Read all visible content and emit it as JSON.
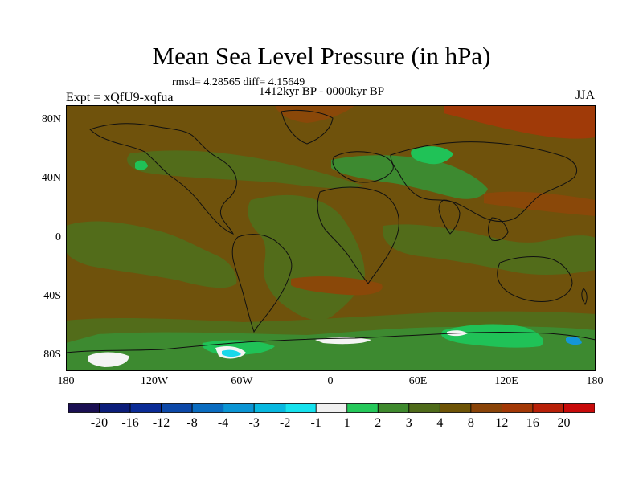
{
  "title": "Mean Sea Level Pressure (in hPa)",
  "stats_line": "rmsd= 4.28565 diff= 4.15649",
  "period_label": "1412kyr BP - 0000kyr BP",
  "experiment_label": "Expt = xQfU9-xqfua",
  "season_label": "JJA",
  "latitude_labels": [
    "80N",
    "40N",
    "0",
    "40S",
    "80S"
  ],
  "longitude_labels": [
    "180",
    "120W",
    "60W",
    "0",
    "60E",
    "120E",
    "180"
  ],
  "colorbar": {
    "labels": [
      "-20",
      "-16",
      "-12",
      "-8",
      "-4",
      "-3",
      "-2",
      "-1",
      "1",
      "2",
      "3",
      "4",
      "8",
      "12",
      "16",
      "20"
    ],
    "colors": [
      "#1a0f52",
      "#0b1d7a",
      "#0a2b96",
      "#0c48a8",
      "#0a6cc0",
      "#0b95d4",
      "#08b8e0",
      "#16e2ee",
      "#f0f0f0",
      "#25c85a",
      "#3f8a2e",
      "#4f6b1a",
      "#6e5406",
      "#8a4408",
      "#a33806",
      "#b82008",
      "#c80a0a"
    ]
  },
  "map_colors": {
    "background": "#6f520c",
    "olive": "#526c1a",
    "green_mid": "#3d8a30",
    "green_bright": "#20c257",
    "orange": "#8a4809",
    "red": "#a03a08",
    "white": "#f4f4f4",
    "cyan": "#1ad8ea",
    "blue": "#1496d6",
    "coast": "#101010"
  }
}
